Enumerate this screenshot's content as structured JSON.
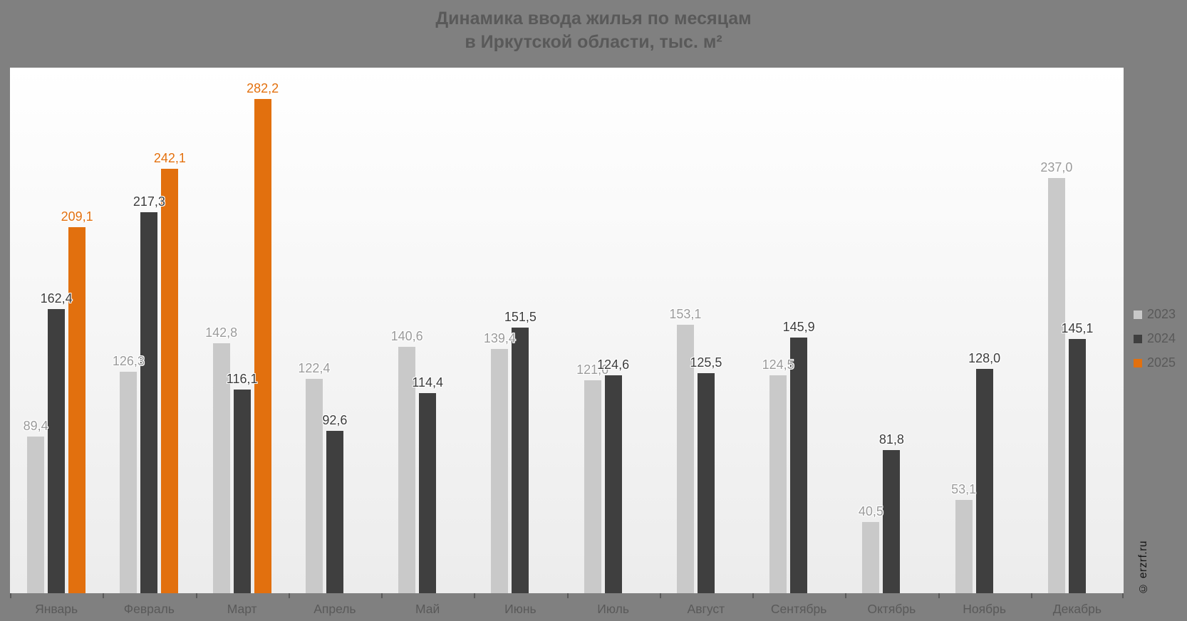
{
  "title": {
    "line1": "Динамика ввода жилья по месяцам",
    "line2": "в Иркутской области, тыс. м²"
  },
  "watermark": "© erzrf.ru",
  "colors": {
    "page_bg": "#808080",
    "plot_bg_top": "#FFFFFF",
    "plot_bg_bottom": "#ECECEC",
    "series_2023": "#C9C9C9",
    "series_2024": "#3F3F3F",
    "series_2025": "#E2700E",
    "label_2023": "#9A9A9A",
    "label_2024": "#3C3C3C",
    "label_2025": "#E2700E",
    "title_text": "#595959",
    "axis_text": "#595959",
    "legend_text": "#595959",
    "tick": "#595959",
    "watermark_text": "#141414"
  },
  "legend": {
    "items": [
      {
        "label": "2023",
        "color": "#C9C9C9"
      },
      {
        "label": "2024",
        "color": "#3F3F3F"
      },
      {
        "label": "2025",
        "color": "#E2700E"
      }
    ]
  },
  "chart_data": {
    "type": "bar",
    "title": "Динамика ввода жилья по месяцам в Иркутской области, тыс. м²",
    "xlabel": "",
    "ylabel": "тыс. м²",
    "ylim": [
      0,
      300
    ],
    "grid": false,
    "legend_position": "right",
    "value_format": "one decimal, comma separator",
    "categories": [
      "Январь",
      "Февраль",
      "Март",
      "Апрель",
      "Май",
      "Июнь",
      "Июль",
      "Август",
      "Сентябрь",
      "Октябрь",
      "Ноябрь",
      "Декабрь"
    ],
    "series": [
      {
        "name": "2023",
        "values": [
          89.4,
          126.3,
          142.8,
          122.4,
          140.6,
          139.4,
          121.6,
          153.1,
          124.5,
          40.5,
          53.1,
          237.0
        ]
      },
      {
        "name": "2024",
        "values": [
          162.4,
          217.3,
          116.1,
          92.6,
          114.4,
          151.5,
          124.6,
          125.5,
          145.9,
          81.8,
          128.0,
          145.1
        ]
      },
      {
        "name": "2025",
        "values": [
          209.1,
          242.1,
          282.2,
          null,
          null,
          null,
          null,
          null,
          null,
          null,
          null,
          null
        ]
      }
    ]
  }
}
